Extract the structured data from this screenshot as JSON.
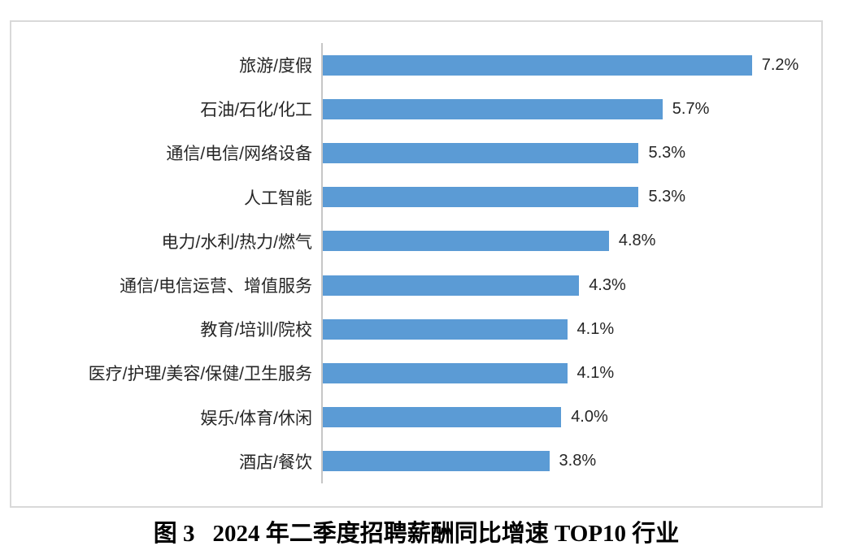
{
  "figure": {
    "caption": {
      "figure_label": "图 3",
      "title": "2024 年二季度招聘薪酬同比增速 TOP10 行业"
    }
  },
  "chart_data": {
    "type": "bar",
    "orientation": "horizontal",
    "title": "",
    "xlabel": "",
    "ylabel": "",
    "categories": [
      "旅游/度假",
      "石油/石化/化工",
      "通信/电信/网络设备",
      "人工智能",
      "电力/水利/热力/燃气",
      "通信/电信运营、增值服务",
      "教育/培训/院校",
      "医疗/护理/美容/保健/卫生服务",
      "娱乐/体育/休闲",
      "酒店/餐饮"
    ],
    "values": [
      7.2,
      5.7,
      5.3,
      5.3,
      4.8,
      4.3,
      4.1,
      4.1,
      4.0,
      3.8
    ],
    "labels": [
      "7.2%",
      "5.7%",
      "5.3%",
      "5.3%",
      "4.8%",
      "4.3%",
      "4.1%",
      "4.1%",
      "4.0%",
      "3.8%"
    ],
    "xlim": [
      0,
      8.45
    ],
    "grid": false,
    "legend": "none",
    "data_labels": "outside-end",
    "sort": "descending",
    "bar_color": "#5b9bd5",
    "axis_line_color": "#c6c6c6",
    "border_color": "#d9d9d9",
    "text_color": "#262626"
  }
}
